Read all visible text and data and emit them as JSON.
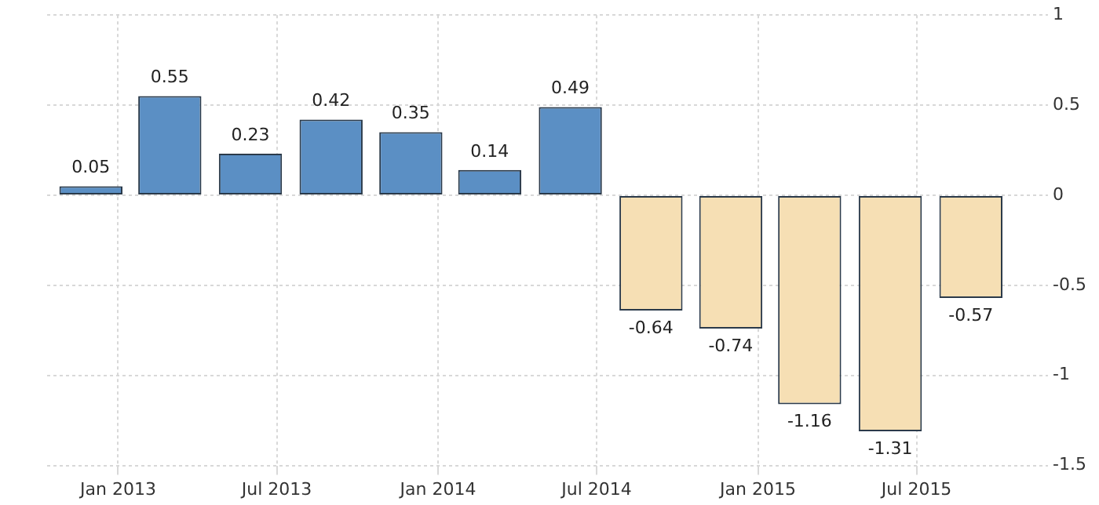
{
  "chart_data": {
    "type": "bar",
    "x": [
      "2012-12",
      "2013-03",
      "2013-06",
      "2013-09",
      "2013-12",
      "2014-03",
      "2014-06",
      "2014-09",
      "2014-12",
      "2015-03",
      "2015-06",
      "2015-09"
    ],
    "values": [
      0.05,
      0.55,
      0.23,
      0.42,
      0.35,
      0.14,
      0.49,
      -0.64,
      -0.74,
      -1.16,
      -1.31,
      -0.57
    ],
    "colors": [
      "#5b8fc4",
      "#5b8fc4",
      "#5b8fc4",
      "#5b8fc4",
      "#5b8fc4",
      "#5b8fc4",
      "#5b8fc4",
      "#f6dfb4",
      "#f6dfb4",
      "#f6dfb4",
      "#f6dfb4",
      "#f6dfb4"
    ],
    "data_labels": true,
    "xlim": [
      "2012-10-12",
      "2015-11-28"
    ],
    "xticks": [
      {
        "value": "2013-01",
        "label": "Jan 2013"
      },
      {
        "value": "2013-07",
        "label": "Jul 2013"
      },
      {
        "value": "2014-01",
        "label": "Jan 2014"
      },
      {
        "value": "2014-07",
        "label": "Jul 2014"
      },
      {
        "value": "2015-01",
        "label": "Jan 2015"
      },
      {
        "value": "2015-07",
        "label": "Jul 2015"
      }
    ],
    "ylim": [
      -1.5,
      1
    ],
    "yticks": [
      -1.5,
      -1,
      -0.5,
      0,
      0.5,
      1
    ],
    "grid": true,
    "legend": false
  }
}
